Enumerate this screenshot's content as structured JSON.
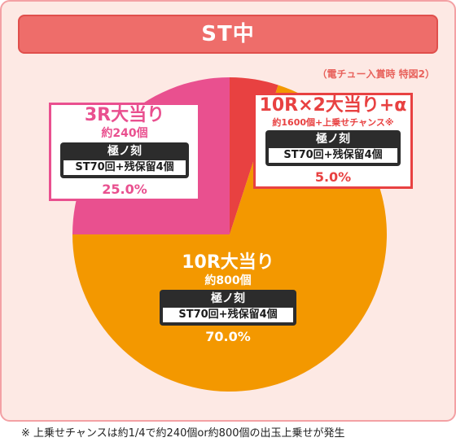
{
  "header": {
    "title": "ST中"
  },
  "subnote": "（電チュー入賞時 特図2）",
  "chart_data": {
    "type": "pie",
    "slices": [
      {
        "label": "10R×2大当り+α",
        "amount": "約1600個+上乗せチャンス※",
        "tag_head": "極ノ刻",
        "tag_body": "ST70回+残保留4個",
        "value": 5.0,
        "pct_label": "5.0%",
        "color": "#e84141"
      },
      {
        "label": "10R大当り",
        "amount": "約800個",
        "tag_head": "極ノ刻",
        "tag_body": "ST70回+残保留4個",
        "value": 70.0,
        "pct_label": "70.0%",
        "color": "#f39800"
      },
      {
        "label": "3R大当り",
        "amount": "約240個",
        "tag_head": "極ノ刻",
        "tag_body": "ST70回+残保留4個",
        "value": 25.0,
        "pct_label": "25.0%",
        "color": "#e9508f"
      }
    ]
  },
  "footnote": "※ 上乗せチャンスは約1/4で約240個or約800個の出玉上乗せが発生"
}
